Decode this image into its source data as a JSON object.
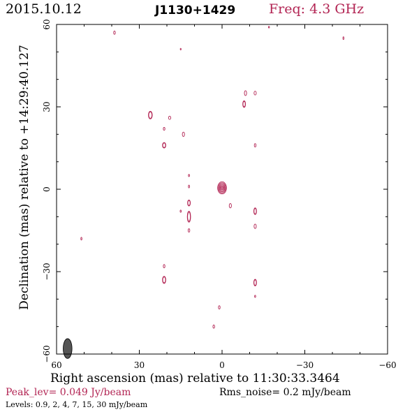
{
  "header": {
    "date": "2015.10.12",
    "source": "J1130+1429",
    "frequency": "Freq: 4.3 GHz"
  },
  "footer": {
    "peak": "Peak_lev=  0.049 Jy/beam",
    "rms": "Rms_noise=   0.2 mJy/beam",
    "levels": "Levels: 0.9,    2,    4,    7,   15,   30 mJy/beam"
  },
  "colors": {
    "contour": "#b22453",
    "axis": "#000000",
    "beam": "#555555"
  },
  "chart_data": {
    "type": "contour",
    "xlabel": "Right ascension (mas) relative to 11:30:33.3464",
    "ylabel": "Declination (mas) relative to +14:29:40.127",
    "xlim": [
      60,
      -60
    ],
    "ylim": [
      -60,
      60
    ],
    "xticks": [
      60,
      30,
      0,
      -30,
      -60
    ],
    "yticks": [
      60,
      30,
      0,
      -30,
      -60
    ],
    "x_tick_labels": [
      "60",
      "30",
      "0",
      "−30",
      "−60"
    ],
    "y_tick_labels": [
      "60",
      "30",
      "0",
      "−30",
      "−60"
    ],
    "contour_levels_mJy": [
      0.9,
      2,
      4,
      7,
      15,
      30
    ],
    "peak_Jy_per_beam": 0.049,
    "rms_mJy_per_beam": 0.2,
    "beam": {
      "x": 56,
      "y": -58,
      "major_mas": 3.6,
      "minor_mas": 1.6,
      "pa_deg": 0
    },
    "components": [
      {
        "x": 0.0,
        "y": 0.5,
        "levels": 6,
        "sx": 1.6,
        "sy": 2.2
      },
      {
        "x": -8.0,
        "y": 31.0,
        "levels": 2,
        "sx": 0.5,
        "sy": 1.2
      },
      {
        "x": -8.5,
        "y": 35.0,
        "levels": 1,
        "sx": 0.4,
        "sy": 0.9
      },
      {
        "x": 26.0,
        "y": 27.0,
        "levels": 2,
        "sx": 0.7,
        "sy": 1.4
      },
      {
        "x": 21.0,
        "y": 16.0,
        "levels": 2,
        "sx": 0.6,
        "sy": 1.0
      },
      {
        "x": 14.0,
        "y": 20.0,
        "levels": 1,
        "sx": 0.4,
        "sy": 0.8
      },
      {
        "x": 21.0,
        "y": 22.0,
        "levels": 1,
        "sx": 0.3,
        "sy": 0.5
      },
      {
        "x": 19.0,
        "y": 26.0,
        "levels": 1,
        "sx": 0.4,
        "sy": 0.6
      },
      {
        "x": -12.0,
        "y": 35.0,
        "levels": 1,
        "sx": 0.4,
        "sy": 0.7
      },
      {
        "x": -12.0,
        "y": 16.0,
        "levels": 1,
        "sx": 0.3,
        "sy": 0.6
      },
      {
        "x": 12.0,
        "y": -5.0,
        "levels": 2,
        "sx": 0.5,
        "sy": 1.1
      },
      {
        "x": 12.0,
        "y": -10.0,
        "levels": 2,
        "sx": 0.6,
        "sy": 2.0
      },
      {
        "x": 12.0,
        "y": -15.0,
        "levels": 1,
        "sx": 0.3,
        "sy": 0.6
      },
      {
        "x": 12.0,
        "y": 1.0,
        "levels": 1,
        "sx": 0.2,
        "sy": 0.5
      },
      {
        "x": -12.0,
        "y": -8.0,
        "levels": 2,
        "sx": 0.5,
        "sy": 1.2
      },
      {
        "x": -12.0,
        "y": -13.5,
        "levels": 1,
        "sx": 0.4,
        "sy": 0.8
      },
      {
        "x": -3.0,
        "y": -6.0,
        "levels": 1,
        "sx": 0.4,
        "sy": 0.8
      },
      {
        "x": 21.0,
        "y": -33.0,
        "levels": 2,
        "sx": 0.6,
        "sy": 1.3
      },
      {
        "x": 21.0,
        "y": -28.0,
        "levels": 1,
        "sx": 0.3,
        "sy": 0.6
      },
      {
        "x": -12.0,
        "y": -34.0,
        "levels": 2,
        "sx": 0.5,
        "sy": 1.2
      },
      {
        "x": -12.0,
        "y": -39.0,
        "levels": 1,
        "sx": 0.2,
        "sy": 0.4
      },
      {
        "x": 39.0,
        "y": 57.0,
        "levels": 1,
        "sx": 0.3,
        "sy": 0.6
      },
      {
        "x": -44.0,
        "y": 55.0,
        "levels": 1,
        "sx": 0.2,
        "sy": 0.5
      },
      {
        "x": -17.0,
        "y": 59.0,
        "levels": 1,
        "sx": 0.2,
        "sy": 0.3
      },
      {
        "x": 15.0,
        "y": 51.0,
        "levels": 1,
        "sx": 0.15,
        "sy": 0.3
      },
      {
        "x": 12.0,
        "y": 5.0,
        "levels": 1,
        "sx": 0.2,
        "sy": 0.4
      },
      {
        "x": 51.0,
        "y": -18.0,
        "levels": 1,
        "sx": 0.2,
        "sy": 0.5
      },
      {
        "x": 15.0,
        "y": -8.0,
        "levels": 1,
        "sx": 0.2,
        "sy": 0.4
      },
      {
        "x": 1.0,
        "y": -43.0,
        "levels": 1,
        "sx": 0.3,
        "sy": 0.6
      },
      {
        "x": 3.0,
        "y": -50.0,
        "levels": 1,
        "sx": 0.3,
        "sy": 0.6
      }
    ]
  }
}
